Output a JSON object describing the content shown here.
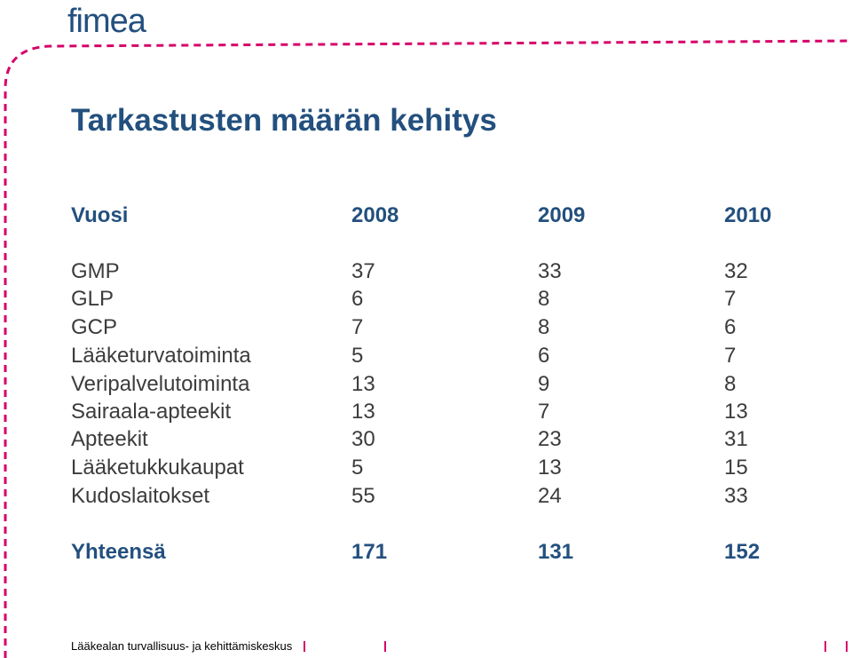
{
  "logo": {
    "text": "fimea",
    "color": "#23507e"
  },
  "title": "Tarkastusten määrän kehitys",
  "table": {
    "header": [
      "Vuosi",
      "2008",
      "2009",
      "2010"
    ],
    "rows": [
      [
        "GMP",
        "37",
        "33",
        "32"
      ],
      [
        "GLP",
        "6",
        "8",
        "7"
      ],
      [
        "GCP",
        "7",
        "8",
        "6"
      ],
      [
        "Lääketurvatoiminta",
        "5",
        "6",
        "7"
      ],
      [
        "Veripalvelutoiminta",
        "13",
        "9",
        "8"
      ],
      [
        "Sairaala-apteekit",
        "13",
        "7",
        "13"
      ],
      [
        "Apteekit",
        "30",
        "23",
        "31"
      ],
      [
        "Lääketukkukaupat",
        "5",
        "13",
        "15"
      ],
      [
        "Kudoslaitokset",
        "55",
        "24",
        "33"
      ]
    ],
    "total": [
      "Yhteensä",
      "171",
      "131",
      "152"
    ]
  },
  "footer": "Lääkealan turvallisuus- ja kehittämiskeskus",
  "colors": {
    "title": "#23507e",
    "body_text": "#3c3c3c",
    "accent": "#d60068"
  }
}
